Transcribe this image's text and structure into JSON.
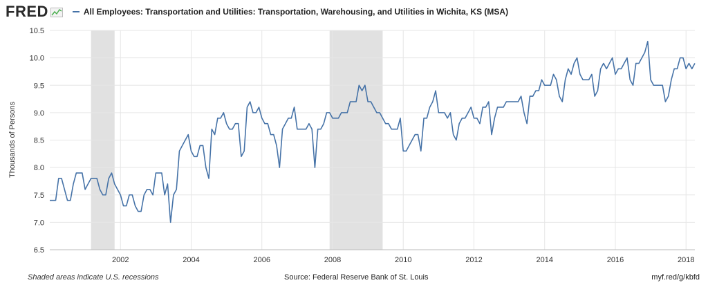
{
  "header": {
    "logo_text": "FRED",
    "logo_icon": "mini-line-chart-icon",
    "series_title": "All Employees: Transportation and Utilities: Transportation, Warehousing, and Utilities in Wichita, KS (MSA)"
  },
  "footer": {
    "recession_note": "Shaded areas indicate U.S. recessions",
    "source": "Source: Federal Reserve Bank of St. Louis",
    "short_url": "myf.red/g/kbfd"
  },
  "colors": {
    "series": "#4572a7",
    "recession": "#e1e1e1",
    "grid": "#e6e6e6"
  },
  "chart_data": {
    "type": "line",
    "title": "",
    "xlabel": "",
    "ylabel": "Thousands of Persons",
    "ylim": [
      6.5,
      10.5
    ],
    "xlim": [
      "2000-01",
      "2018-04"
    ],
    "yticks": [
      "6.5",
      "7.0",
      "7.5",
      "8.0",
      "8.5",
      "9.0",
      "9.5",
      "10.0",
      "10.5"
    ],
    "xticks": [
      "2002",
      "2004",
      "2006",
      "2008",
      "2010",
      "2012",
      "2014",
      "2016",
      "2018"
    ],
    "grid": true,
    "legend": "top-left",
    "recessions": [
      {
        "start": "2001-03",
        "end": "2001-11"
      },
      {
        "start": "2007-12",
        "end": "2009-06"
      }
    ],
    "series": [
      {
        "name": "All Employees: Transportation and Utilities: Transportation, Warehousing, and Utilities in Wichita, KS (MSA)",
        "start": "2000-01",
        "values": [
          7.4,
          7.4,
          7.4,
          7.8,
          7.8,
          7.6,
          7.4,
          7.4,
          7.7,
          7.9,
          7.9,
          7.9,
          7.6,
          7.7,
          7.8,
          7.8,
          7.8,
          7.6,
          7.5,
          7.5,
          7.8,
          7.9,
          7.7,
          7.6,
          7.5,
          7.3,
          7.3,
          7.5,
          7.5,
          7.3,
          7.2,
          7.2,
          7.5,
          7.6,
          7.6,
          7.5,
          7.9,
          7.9,
          7.9,
          7.5,
          7.7,
          7.0,
          7.5,
          7.6,
          8.3,
          8.4,
          8.5,
          8.6,
          8.3,
          8.2,
          8.2,
          8.4,
          8.4,
          8.0,
          7.8,
          8.7,
          8.6,
          8.9,
          8.9,
          9.0,
          8.8,
          8.7,
          8.7,
          8.8,
          8.8,
          8.2,
          8.3,
          9.1,
          9.2,
          9.0,
          9.0,
          9.1,
          8.9,
          8.8,
          8.8,
          8.6,
          8.6,
          8.4,
          8.0,
          8.7,
          8.8,
          8.9,
          8.9,
          9.1,
          8.7,
          8.7,
          8.7,
          8.7,
          8.8,
          8.7,
          8.0,
          8.7,
          8.7,
          8.8,
          9.0,
          9.0,
          8.9,
          8.9,
          8.9,
          9.0,
          9.0,
          9.0,
          9.2,
          9.2,
          9.2,
          9.5,
          9.4,
          9.5,
          9.2,
          9.2,
          9.1,
          9.0,
          9.0,
          8.9,
          8.8,
          8.8,
          8.7,
          8.7,
          8.7,
          8.9,
          8.3,
          8.3,
          8.4,
          8.5,
          8.6,
          8.6,
          8.3,
          8.9,
          8.9,
          9.1,
          9.2,
          9.4,
          9.0,
          9.0,
          9.0,
          8.9,
          9.0,
          8.6,
          8.5,
          8.8,
          8.9,
          8.9,
          9.0,
          9.1,
          8.9,
          8.9,
          8.8,
          9.1,
          9.1,
          9.2,
          8.6,
          8.9,
          9.1,
          9.1,
          9.1,
          9.2,
          9.2,
          9.2,
          9.2,
          9.2,
          9.3,
          9.0,
          8.8,
          9.3,
          9.3,
          9.4,
          9.4,
          9.6,
          9.5,
          9.5,
          9.5,
          9.7,
          9.6,
          9.3,
          9.2,
          9.6,
          9.8,
          9.7,
          9.9,
          10.0,
          9.7,
          9.6,
          9.6,
          9.6,
          9.7,
          9.3,
          9.4,
          9.8,
          9.9,
          9.8,
          9.9,
          10.0,
          9.7,
          9.8,
          9.8,
          9.9,
          10.0,
          9.6,
          9.5,
          9.9,
          9.9,
          10.0,
          10.1,
          10.3,
          9.6,
          9.5,
          9.5,
          9.5,
          9.5,
          9.2,
          9.3,
          9.6,
          9.8,
          9.8,
          10.0,
          10.0,
          9.8,
          9.9,
          9.8,
          9.9
        ]
      }
    ]
  }
}
